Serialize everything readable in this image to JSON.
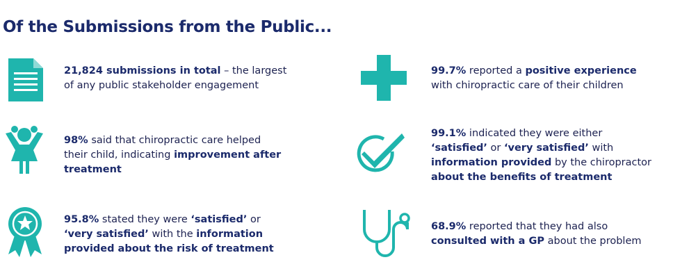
{
  "title": "Of the Submissions from the Public...",
  "colors": {
    "accent": "#1fb5ad",
    "navy": "#1b2a6b"
  },
  "items": [
    {
      "icon": "document-icon",
      "lines": [
        [
          {
            "t": "21,824 submissions in total",
            "b": true
          },
          {
            "t": " – the largest",
            "b": false
          }
        ],
        [
          {
            "t": "of any public stakeholder engagement",
            "b": false
          }
        ]
      ]
    },
    {
      "icon": "plus-cross-icon",
      "lines": [
        [
          {
            "t": "99.7%",
            "b": true
          },
          {
            "t": " reported a ",
            "b": false
          },
          {
            "t": "positive experience",
            "b": true
          }
        ],
        [
          {
            "t": "with chiropractic care of their children",
            "b": false
          }
        ]
      ]
    },
    {
      "icon": "child-icon",
      "lines": [
        [
          {
            "t": "98%",
            "b": true
          },
          {
            "t": " said that chiropractic care helped",
            "b": false
          }
        ],
        [
          {
            "t": "their child, indicating ",
            "b": false
          },
          {
            "t": "improvement after",
            "b": true
          }
        ],
        [
          {
            "t": "treatment",
            "b": true
          }
        ]
      ]
    },
    {
      "icon": "checkmark-icon",
      "lines": [
        [
          {
            "t": "99.1%",
            "b": true
          },
          {
            "t": " indicated they were either",
            "b": false
          }
        ],
        [
          {
            "t": "‘satisfied’",
            "b": true
          },
          {
            "t": " or ",
            "b": false
          },
          {
            "t": "‘very satisfied’",
            "b": true
          },
          {
            "t": " with",
            "b": false
          }
        ],
        [
          {
            "t": "information provided",
            "b": true
          },
          {
            "t": " by the chiropractor",
            "b": false
          }
        ],
        [
          {
            "t": "about the benefits of treatment",
            "b": true
          }
        ]
      ]
    },
    {
      "icon": "award-ribbon-icon",
      "lines": [
        [
          {
            "t": "95.8%",
            "b": true
          },
          {
            "t": " stated they were ",
            "b": false
          },
          {
            "t": "‘satisfied’",
            "b": true
          },
          {
            "t": " or",
            "b": false
          }
        ],
        [
          {
            "t": "‘very satisfied’",
            "b": true
          },
          {
            "t": " with the ",
            "b": false
          },
          {
            "t": "information",
            "b": true
          }
        ],
        [
          {
            "t": "provided about the risk of treatment",
            "b": true
          }
        ]
      ]
    },
    {
      "icon": "stethoscope-icon",
      "lines": [
        [
          {
            "t": "68.9%",
            "b": true
          },
          {
            "t": " reported that they had also",
            "b": false
          }
        ],
        [
          {
            "t": "consulted with a GP",
            "b": true
          },
          {
            "t": " about the problem",
            "b": false
          }
        ]
      ]
    }
  ]
}
